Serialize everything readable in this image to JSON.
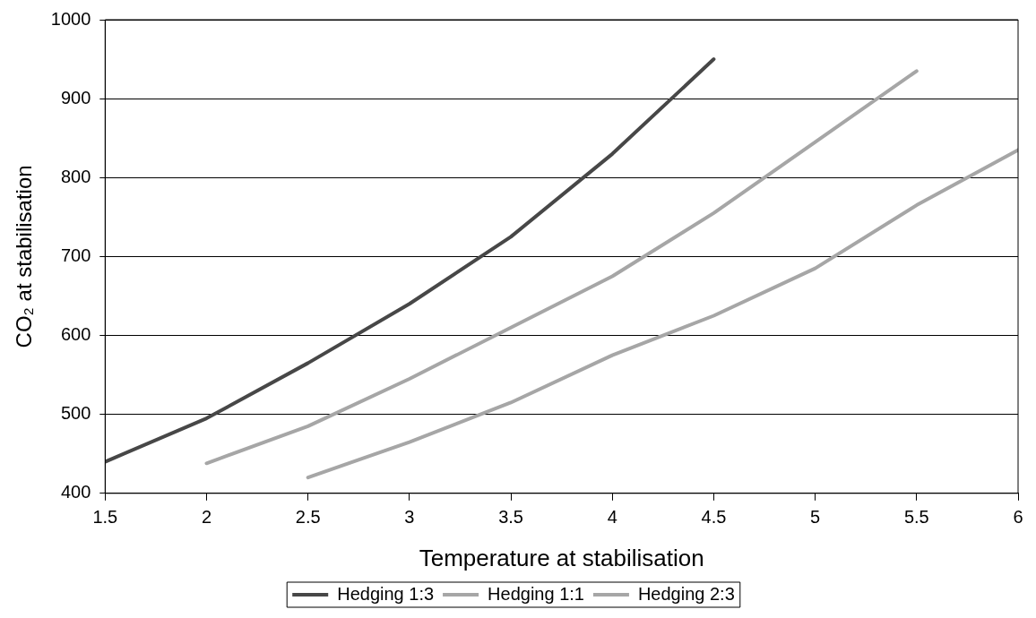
{
  "chart_data": {
    "type": "line",
    "xlabel": "Temperature at stabilisation",
    "ylabel": "CO₂ at stabilisation",
    "xlim": [
      1.5,
      6
    ],
    "xticks": [
      1.5,
      2,
      2.5,
      3,
      3.5,
      4,
      4.5,
      5,
      5.5,
      6
    ],
    "ylim": [
      400,
      1000
    ],
    "yticks": [
      400,
      500,
      600,
      700,
      800,
      900,
      1000
    ],
    "grid": "y",
    "legend": "bottom",
    "marker": "none",
    "line_style": "solid",
    "series": [
      {
        "name": "Hedging 1:3",
        "color": "#474747",
        "x": [
          1.5,
          2,
          2.5,
          3,
          3.5,
          4,
          4.5
        ],
        "values": [
          440,
          495,
          565,
          640,
          725,
          830,
          950
        ]
      },
      {
        "name": "Hedging 1:1",
        "color": "#a6a6a6",
        "x": [
          2,
          2.5,
          3,
          3.5,
          4,
          4.5,
          5,
          5.5
        ],
        "values": [
          438,
          485,
          545,
          610,
          675,
          755,
          845,
          935
        ]
      },
      {
        "name": "Hedging 2:3",
        "color": "#a6a6a6",
        "x": [
          2.5,
          3,
          3.5,
          4,
          4.5,
          5,
          5.5,
          6
        ],
        "values": [
          420,
          465,
          515,
          575,
          625,
          685,
          765,
          835
        ]
      }
    ]
  }
}
